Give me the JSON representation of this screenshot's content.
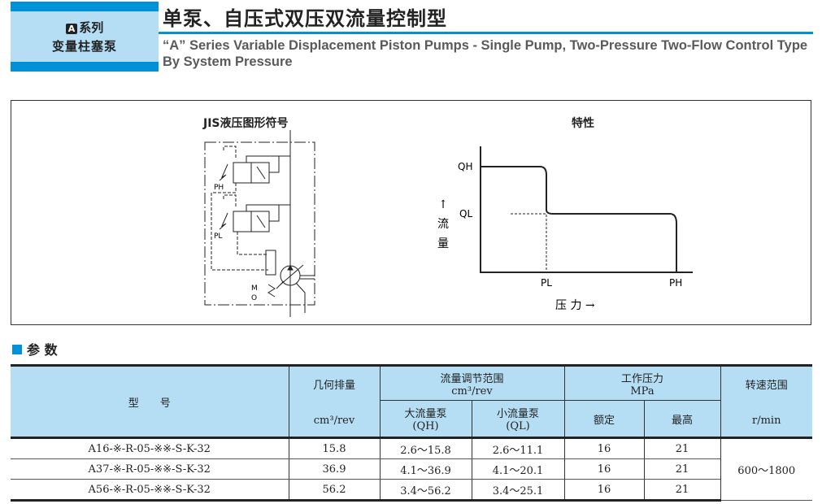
{
  "header": {
    "series_logo": "A",
    "series_label": "系列",
    "series_sub": "变量柱塞泵",
    "title": "单泵、自压式双压双流量控制型",
    "subtitle": "“A” Series Variable Displacement Piston Pumps - Single Pump, Two-Pressure Two-Flow Control Type By System Pressure"
  },
  "symbol": {
    "title": "JIS液压图形符号",
    "labels": {
      "ph": "PH",
      "pl": "PL",
      "m": "M",
      "o": "O"
    }
  },
  "characteristic": {
    "title": "特性",
    "y_label": "↑\n流\n量",
    "y_arrow": "↑",
    "y_char1": "流",
    "y_char2": "量",
    "x_label": "压 力 →",
    "ticks": {
      "qh": "QH",
      "ql": "QL",
      "pl": "PL",
      "ph": "PH"
    }
  },
  "params": {
    "title": "参 数",
    "headers": {
      "model": "型　　号",
      "disp": "几何排量",
      "disp_unit": "cm³/rev",
      "flow": "流量调节范围",
      "flow_unit": "cm³/rev",
      "big": "大流量泵",
      "big_sub": "(QH)",
      "small": "小流量泵",
      "small_sub": "(QL)",
      "press": "工作压力",
      "press_unit": "MPa",
      "rated": "额定",
      "max": "最高",
      "speed": "转速范围",
      "speed_unit": "r/min"
    },
    "rows": [
      {
        "model": "A16-※-R-05-※※-S-K-32",
        "disp": "15.8",
        "qh": "2.6～15.8",
        "ql": "2.6～11.1",
        "rated": "16",
        "max": "21"
      },
      {
        "model": "A37-※-R-05-※※-S-K-32",
        "disp": "36.9",
        "qh": "4.1～36.9",
        "ql": "4.1～20.1",
        "rated": "16",
        "max": "21"
      },
      {
        "model": "A56-※-R-05-※※-S-K-32",
        "disp": "56.2",
        "qh": "3.4～56.2",
        "ql": "3.4～25.1",
        "rated": "16",
        "max": "21"
      }
    ],
    "speed": "600～1800"
  },
  "colors": {
    "accent": "#0091d9",
    "header_bg": "#b5def5"
  }
}
